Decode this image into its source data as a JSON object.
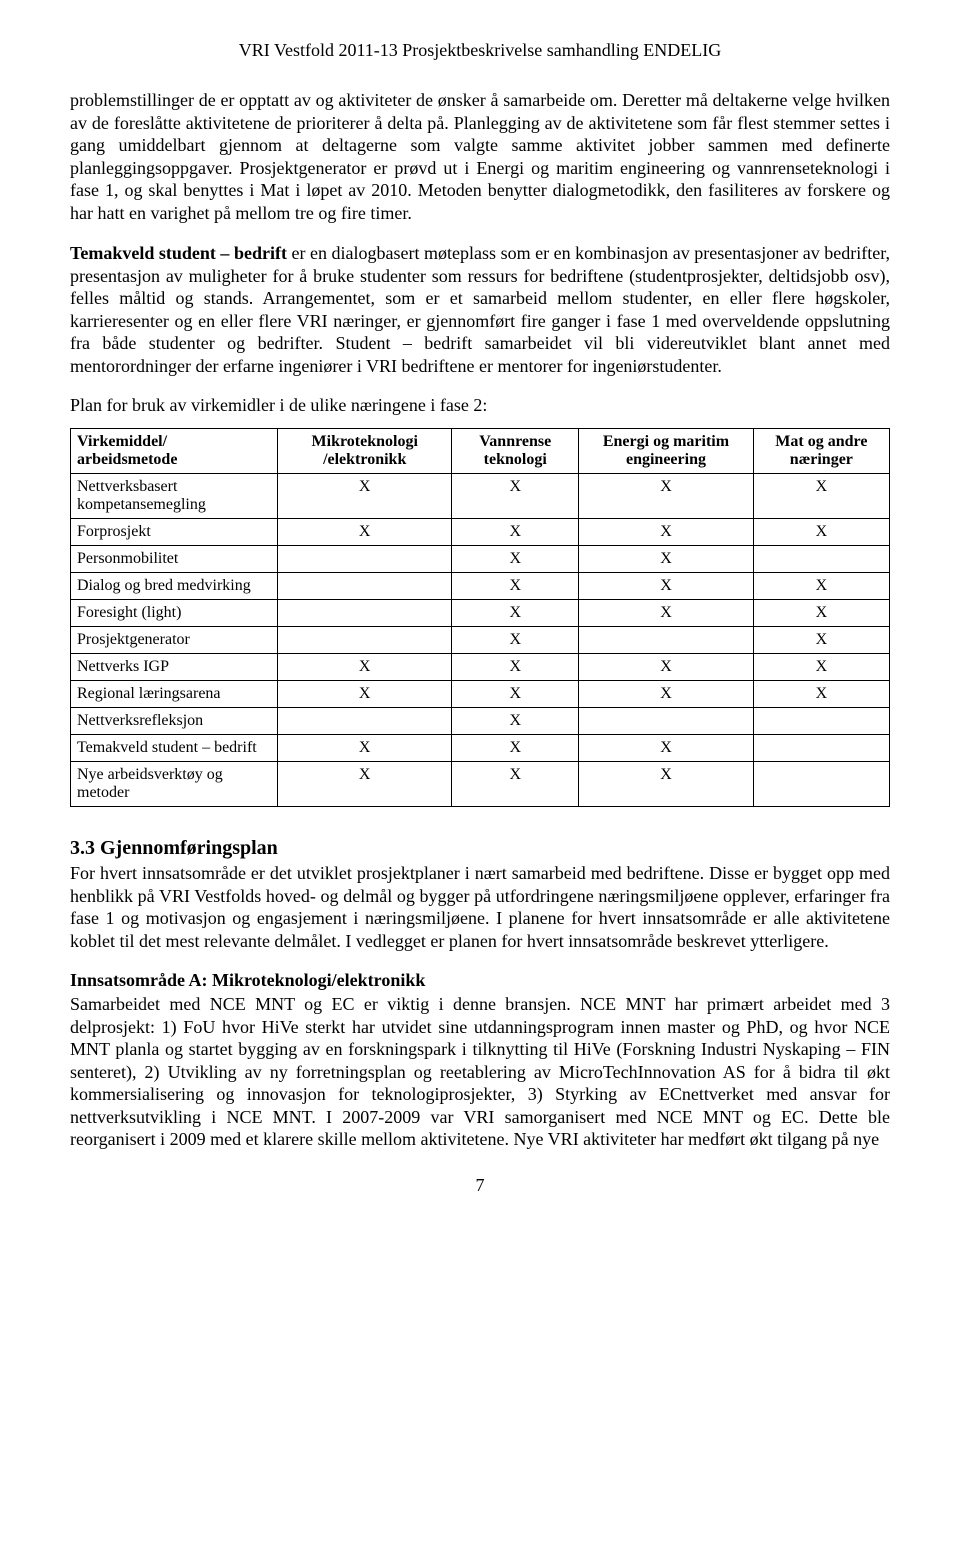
{
  "header": "VRI Vestfold 2011-13 Prosjektbeskrivelse samhandling ENDELIG",
  "para1": "problemstillinger de er opptatt av og aktiviteter de ønsker å samarbeide om. Deretter må deltakerne velge hvilken av de foreslåtte aktivitetene de prioriterer å delta på. Planlegging av de aktivitetene som får flest stemmer settes i gang umiddelbart gjennom at deltagerne som valgte samme aktivitet jobber sammen med definerte planleggingsoppgaver. Prosjektgenerator er prøvd ut i Energi og maritim engineering og vannrenseteknologi i fase 1, og skal benyttes i Mat i løpet av 2010. Metoden benytter dialogmetodikk, den fasiliteres av forskere og har hatt en varighet på mellom tre og fire timer.",
  "para2_bold": "Temakveld student – bedrift",
  "para2_rest": " er en dialogbasert møteplass som er en kombinasjon av presentasjoner av bedrifter, presentasjon av muligheter for å bruke studenter som ressurs for bedriftene (studentprosjekter, deltidsjobb osv), felles måltid og stands. Arrangementet, som er et samarbeid mellom studenter, en eller flere høgskoler, karrieresenter og en eller flere VRI næringer, er gjennomført fire ganger i fase 1 med overveldende oppslutning fra både studenter og bedrifter. Student – bedrift samarbeidet vil bli videreutviklet blant annet med mentorordninger der erfarne ingeniører i VRI bedriftene er mentorer for ingeniørstudenter.",
  "plan_line": "Plan for bruk av virkemidler i de ulike næringene i fase 2:",
  "table": {
    "columns": [
      "Virkemiddel/ arbeidsmetode",
      "Mikroteknologi /elektronikk",
      "Vannrense teknologi",
      "Energi og maritim engineering",
      "Mat og andre næringer"
    ],
    "rows": [
      [
        "Nettverksbasert kompetansemegling",
        "X",
        "X",
        "X",
        "X"
      ],
      [
        "Forprosjekt",
        "X",
        "X",
        "X",
        "X"
      ],
      [
        "Personmobilitet",
        "",
        "X",
        "X",
        ""
      ],
      [
        "Dialog og bred medvirking",
        "",
        "X",
        "X",
        "X"
      ],
      [
        "Foresight (light)",
        "",
        "X",
        "X",
        "X"
      ],
      [
        "Prosjektgenerator",
        "",
        "X",
        "",
        "X"
      ],
      [
        "Nettverks IGP",
        "X",
        "X",
        "X",
        "X"
      ],
      [
        "Regional læringsarena",
        "X",
        "X",
        "X",
        "X"
      ],
      [
        "Nettverksrefleksjon",
        "",
        "X",
        "",
        ""
      ],
      [
        "Temakveld student – bedrift",
        "X",
        "X",
        "X",
        ""
      ],
      [
        "Nye arbeidsverktøy og metoder",
        "X",
        "X",
        "X",
        ""
      ]
    ]
  },
  "section_heading": "3.3 Gjennomføringsplan",
  "para3": "For hvert innsatsområde er det utviklet prosjektplaner i nært samarbeid med bedriftene. Disse er bygget opp med henblikk på VRI Vestfolds hoved- og delmål og bygger på utfordringene næringsmiljøene opplever, erfaringer fra fase 1 og motivasjon og engasjement i næringsmiljøene. I planene for hvert innsatsområde er alle aktivitetene koblet til det mest relevante delmålet. I vedlegget er planen for hvert innsatsområde beskrevet ytterligere.",
  "sub_heading": "Innsatsområde A: Mikroteknologi/elektronikk",
  "para4": "Samarbeidet med NCE MNT og EC er viktig i denne bransjen. NCE MNT har primært arbeidet med 3 delprosjekt: 1) FoU hvor HiVe sterkt har utvidet sine utdanningsprogram innen master og PhD, og hvor NCE MNT planla og startet bygging av en forskningspark i tilknytting til HiVe (Forskning Industri Nyskaping – FIN senteret), 2) Utvikling av ny forretningsplan og reetablering av MicroTechInnovation AS for å bidra til økt kommersialisering og innovasjon for teknologiprosjekter, 3) Styrking av ECnettverket med ansvar for nettverksutvikling i NCE MNT. I 2007-2009 var VRI samorganisert med NCE MNT og EC. Dette ble reorganisert i 2009 med et klarere skille mellom aktivitetene. Nye VRI aktiviteter har medført økt tilgang på nye",
  "page_number": "7"
}
